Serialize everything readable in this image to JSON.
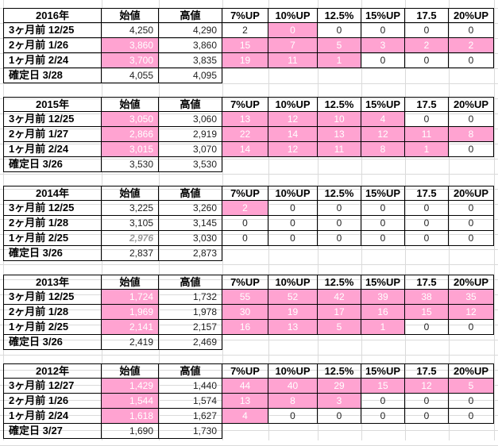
{
  "columns": [
    "始値",
    "高値",
    "7%UP",
    "10%UP",
    "12.5%",
    "15%UP",
    "17.5",
    "20%UP"
  ],
  "highlight_color": "#ffa3d1",
  "blocks": [
    {
      "year": "2016年",
      "rows": [
        {
          "label": "3ヶ月前 12/25",
          "open": "4,250",
          "high": "4,290",
          "counts": [
            "2",
            "0",
            "0",
            "0",
            "0",
            "0"
          ],
          "pink": [
            false,
            true,
            false,
            false,
            false,
            false
          ],
          "open_pink": false
        },
        {
          "label": "2ヶ月前 1/26",
          "open": "3,860",
          "high": "3,860",
          "counts": [
            "15",
            "7",
            "5",
            "3",
            "2",
            "2"
          ],
          "pink": [
            true,
            true,
            true,
            true,
            true,
            true
          ],
          "open_pink": true
        },
        {
          "label": "1ヶ月前 2/24",
          "open": "3,700",
          "high": "3,835",
          "counts": [
            "19",
            "11",
            "1",
            "0",
            "0",
            "0"
          ],
          "pink": [
            true,
            true,
            true,
            false,
            false,
            false
          ],
          "open_pink": true
        },
        {
          "label": "確定日 3/28",
          "open": "4,055",
          "high": "4,095",
          "counts": null
        }
      ]
    },
    {
      "year": "2015年",
      "rows": [
        {
          "label": "3ヶ月前 12/25",
          "open": "3,050",
          "high": "3,060",
          "counts": [
            "13",
            "12",
            "10",
            "4",
            "0",
            "0"
          ],
          "pink": [
            true,
            true,
            true,
            true,
            false,
            false
          ],
          "open_pink": true
        },
        {
          "label": "2ヶ月前 1/27",
          "open": "2,866",
          "high": "2,919",
          "counts": [
            "22",
            "14",
            "13",
            "12",
            "11",
            "8"
          ],
          "pink": [
            true,
            true,
            true,
            true,
            true,
            true
          ],
          "open_pink": true
        },
        {
          "label": "1ヶ月前 2/24",
          "open": "3,015",
          "high": "3,070",
          "counts": [
            "14",
            "12",
            "11",
            "8",
            "1",
            "0"
          ],
          "pink": [
            true,
            true,
            true,
            true,
            true,
            false
          ],
          "open_pink": true
        },
        {
          "label": "確定日 3/26",
          "open": "3,530",
          "high": "3,530",
          "counts": null
        }
      ]
    },
    {
      "year": "2014年",
      "rows": [
        {
          "label": "3ヶ月前 12/25",
          "open": "3,225",
          "high": "3,260",
          "counts": [
            "2",
            "0",
            "0",
            "0",
            "0",
            "0"
          ],
          "pink": [
            true,
            false,
            false,
            false,
            false,
            false
          ],
          "open_pink": false
        },
        {
          "label": "2ヶ月前 1/28",
          "open": "3,105",
          "high": "3,145",
          "counts": [
            "0",
            "0",
            "0",
            "0",
            "0",
            "0"
          ],
          "pink": [
            false,
            false,
            false,
            false,
            false,
            false
          ],
          "open_pink": false
        },
        {
          "label": "1ヶ月前 2/25",
          "open": "2,976",
          "high": "3,030",
          "counts": [
            "0",
            "0",
            "0",
            "0",
            "0",
            "0"
          ],
          "pink": [
            false,
            false,
            false,
            false,
            false,
            false
          ],
          "open_pink": false,
          "open_italic": true
        },
        {
          "label": "確定日 3/26",
          "open": "2,837",
          "high": "2,873",
          "counts": null
        }
      ]
    },
    {
      "year": "2013年",
      "rows": [
        {
          "label": "3ヶ月前 12/25",
          "open": "1,724",
          "high": "1,732",
          "counts": [
            "55",
            "52",
            "42",
            "39",
            "38",
            "35"
          ],
          "pink": [
            true,
            true,
            true,
            true,
            true,
            true
          ],
          "open_pink": true
        },
        {
          "label": "2ヶ月前 1/28",
          "open": "1,969",
          "high": "1,978",
          "counts": [
            "30",
            "19",
            "17",
            "16",
            "15",
            "12"
          ],
          "pink": [
            true,
            true,
            true,
            true,
            true,
            true
          ],
          "open_pink": true
        },
        {
          "label": "1ヶ月前 2/25",
          "open": "2,141",
          "high": "2,157",
          "counts": [
            "16",
            "13",
            "5",
            "1",
            "0",
            "0"
          ],
          "pink": [
            true,
            true,
            true,
            true,
            false,
            false
          ],
          "open_pink": true
        },
        {
          "label": "確定日 3/26",
          "open": "2,419",
          "high": "2,469",
          "counts": null
        }
      ]
    },
    {
      "year": "2012年",
      "rows": [
        {
          "label": "3ヶ月前 12/27",
          "open": "1,429",
          "high": "1,440",
          "counts": [
            "44",
            "40",
            "29",
            "15",
            "12",
            "5"
          ],
          "pink": [
            true,
            true,
            true,
            true,
            true,
            true
          ],
          "open_pink": true
        },
        {
          "label": "2ヶ月前 1/26",
          "open": "1,544",
          "high": "1,574",
          "counts": [
            "13",
            "8",
            "3",
            "0",
            "0",
            "0"
          ],
          "pink": [
            true,
            true,
            true,
            false,
            false,
            false
          ],
          "open_pink": true
        },
        {
          "label": "1ヶ月前 2/24",
          "open": "1,618",
          "high": "1,627",
          "counts": [
            "4",
            "0",
            "0",
            "0",
            "0",
            "0"
          ],
          "pink": [
            true,
            false,
            false,
            false,
            false,
            false
          ],
          "open_pink": true
        },
        {
          "label": "確定日 3/27",
          "open": "1,690",
          "high": "1,730",
          "counts": null
        }
      ]
    }
  ]
}
